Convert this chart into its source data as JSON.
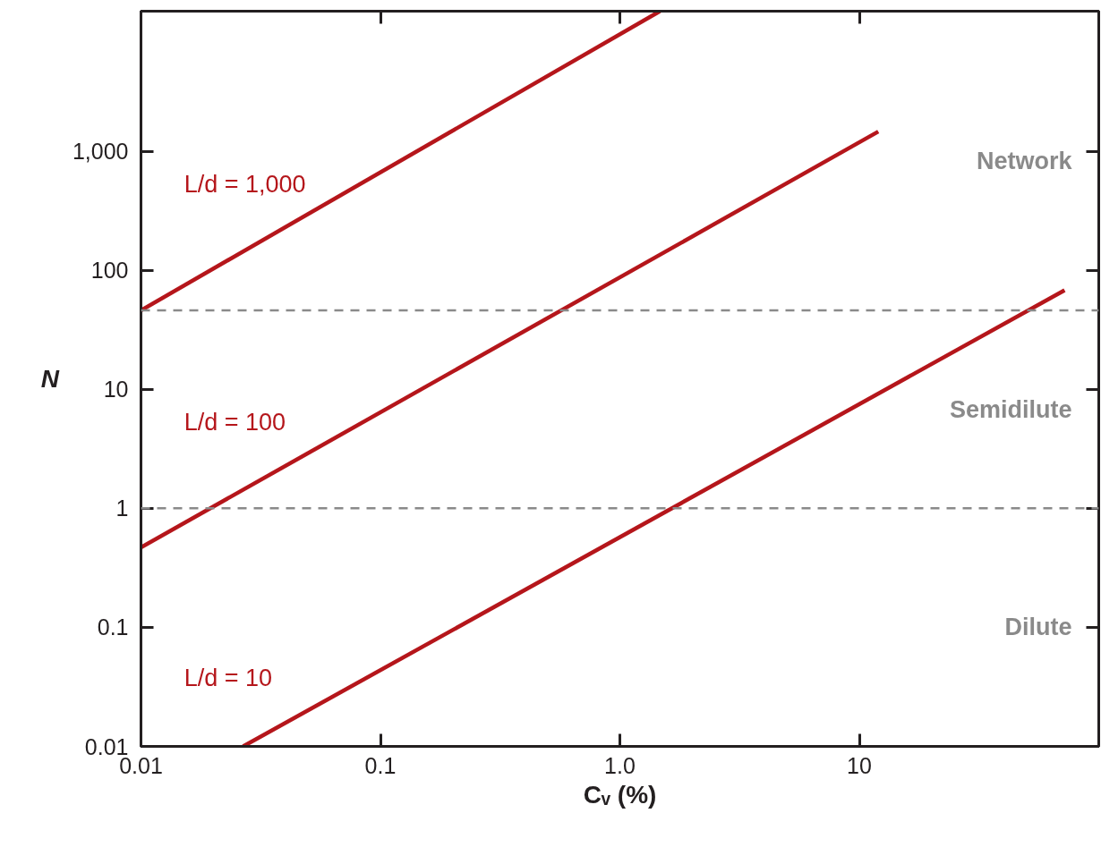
{
  "chart_data": {
    "type": "line",
    "log": "xy",
    "grid": false,
    "legend": false,
    "line_style": "solid",
    "marker": "none",
    "xlabel": "Cᵥ (%)",
    "ylabel": "N",
    "xlim": [
      0.01,
      100
    ],
    "ylim": [
      0.01,
      15000
    ],
    "xticks": [
      0.01,
      0.1,
      {
        "value": 1,
        "label": "1.0"
      },
      10
    ],
    "yticks": [
      0.01,
      0.1,
      1,
      10,
      100,
      {
        "value": 1000,
        "label": "1,000"
      }
    ],
    "series": [
      {
        "name": "L/d = 1,000",
        "color": "#b5161b",
        "x": [
          0.01,
          1.47
        ],
        "values": [
          46,
          15000
        ]
      },
      {
        "name": "L/d = 100",
        "color": "#b5161b",
        "x": [
          0.01,
          12
        ],
        "values": [
          0.47,
          1460
        ]
      },
      {
        "name": "L/d = 10",
        "color": "#b5161b",
        "x": [
          0.0267,
          72
        ],
        "values": [
          0.01,
          68
        ]
      }
    ],
    "ref_lines": [
      {
        "axis": "y",
        "value": 46,
        "color": "#8a8a8a",
        "line_style": "dashed"
      },
      {
        "axis": "y",
        "value": 1,
        "color": "#8a8a8a",
        "line_style": "dashed"
      }
    ],
    "annotations": [
      "Network",
      "Semidilute",
      "Dilute"
    ]
  }
}
